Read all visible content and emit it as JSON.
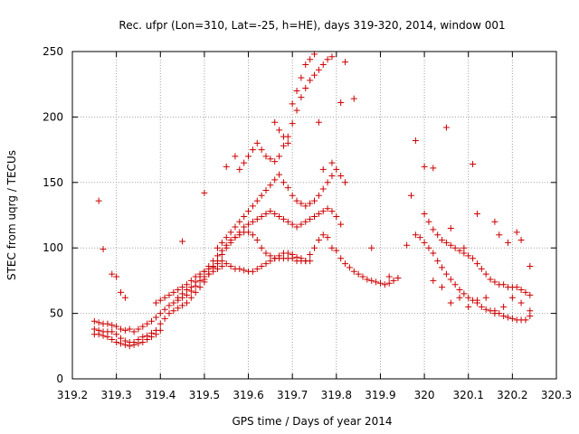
{
  "chart_data": {
    "type": "scatter",
    "title": "Rec. ufpr (Lon=310, Lat=-25, h=HE), days 319-320, 2014, window 001",
    "xlabel": "GPS time / Days of year 2014",
    "ylabel": "STEC from uqrg / TECUs",
    "xlim": [
      319.2,
      320.3
    ],
    "ylim": [
      0,
      250
    ],
    "xticks": [
      "319.2",
      "319.3",
      "319.4",
      "319.5",
      "319.6",
      "319.7",
      "319.8",
      "319.9",
      "320",
      "320.1",
      "320.2",
      "320.3"
    ],
    "yticks": [
      "0",
      "50",
      "100",
      "150",
      "200",
      "250"
    ],
    "grid": true,
    "marker": "+",
    "color": "#cc0000",
    "series": [
      {
        "x": [
          319.25,
          319.26,
          319.27,
          319.28,
          319.29,
          319.3,
          319.31,
          319.32,
          319.33,
          319.34,
          319.35,
          319.36,
          319.37,
          319.38,
          319.39,
          319.4,
          319.25,
          319.26,
          319.27,
          319.28,
          319.29,
          319.3,
          319.31,
          319.32,
          319.33,
          319.34,
          319.35,
          319.36,
          319.37,
          319.38,
          319.39,
          319.4,
          319.41,
          319.42,
          319.43,
          319.44,
          319.45,
          319.46,
          319.47,
          319.48,
          319.49,
          319.5,
          319.25,
          319.26,
          319.27,
          319.28,
          319.29,
          319.3,
          319.31,
          319.32,
          319.33,
          319.34,
          319.35,
          319.36,
          319.37,
          319.38,
          319.39,
          319.4,
          319.41,
          319.42,
          319.43,
          319.44,
          319.45,
          319.46,
          319.47,
          319.48,
          319.49,
          319.5,
          319.51,
          319.52,
          319.53,
          319.54,
          319.39,
          319.4,
          319.41,
          319.42,
          319.43,
          319.44,
          319.45,
          319.46,
          319.47,
          319.48,
          319.49,
          319.5,
          319.51,
          319.52,
          319.53,
          319.54,
          319.55,
          319.56,
          319.57,
          319.58,
          319.59,
          319.6,
          319.61,
          319.62,
          319.63,
          319.64,
          319.65,
          319.66,
          319.67,
          319.68,
          319.69,
          319.7,
          319.71,
          319.72,
          319.73,
          319.74,
          319.44,
          319.45,
          319.46,
          319.47,
          319.48,
          319.49,
          319.5,
          319.51,
          319.52,
          319.53,
          319.54,
          319.55,
          319.56,
          319.57,
          319.58,
          319.59,
          319.6,
          319.61,
          319.62,
          319.63,
          319.64,
          319.65,
          319.66,
          319.67,
          319.68,
          319.69,
          319.7,
          319.71,
          319.72,
          319.73,
          319.74,
          319.75,
          319.76,
          319.77,
          319.78,
          319.79,
          319.8,
          319.81,
          319.82,
          319.83,
          319.84,
          319.85,
          319.86,
          319.87,
          319.88,
          319.89,
          319.9,
          319.91,
          319.92,
          319.93,
          319.94,
          319.5,
          319.51,
          319.52,
          319.53,
          319.54,
          319.55,
          319.56,
          319.57,
          319.58,
          319.59,
          319.6,
          319.61,
          319.62,
          319.63,
          319.64,
          319.65,
          319.66,
          319.67,
          319.68,
          319.69,
          319.7,
          319.71,
          319.72,
          319.73,
          319.74,
          319.75,
          319.76,
          319.77,
          319.78,
          319.79,
          319.8,
          319.81,
          319.53,
          319.54,
          319.55,
          319.56,
          319.57,
          319.58,
          319.59,
          319.6,
          319.61,
          319.62,
          319.63,
          319.64,
          319.65,
          319.66,
          319.67,
          319.68,
          319.69,
          319.7,
          319.71,
          319.72,
          319.73,
          319.74,
          319.75,
          319.76,
          319.77,
          319.78,
          319.79,
          319.8,
          319.81,
          319.82,
          319.58,
          319.59,
          319.6,
          319.61,
          319.62,
          319.63,
          319.64,
          319.65,
          319.66,
          319.67,
          319.68,
          319.69,
          319.7,
          319.71,
          319.72,
          319.73,
          319.74,
          319.75,
          319.76,
          319.77,
          319.78,
          319.79,
          319.66,
          319.67,
          319.68,
          319.69,
          319.7,
          319.71,
          319.72,
          319.73,
          319.74,
          319.75,
          319.26,
          319.27,
          319.29,
          319.3,
          319.31,
          319.32,
          319.45,
          319.5,
          319.55,
          319.57,
          319.76,
          319.77,
          319.79,
          319.81,
          319.82,
          319.84,
          319.88,
          319.92,
          319.96,
          319.97,
          319.98,
          320.0,
          320.02,
          320.05,
          320.06,
          320.09,
          320.11,
          320.12,
          320.16,
          320.17,
          320.19,
          320.21,
          320.22,
          320.24,
          319.98,
          319.99,
          320.0,
          320.01,
          320.02,
          320.03,
          320.04,
          320.05,
          320.06,
          320.07,
          320.08,
          320.09,
          320.1,
          320.11,
          320.12,
          320.13,
          320.14,
          320.15,
          320.16,
          320.17,
          320.18,
          320.19,
          320.2,
          320.21,
          320.22,
          320.23,
          320.24,
          320.0,
          320.01,
          320.02,
          320.03,
          320.04,
          320.05,
          320.06,
          320.07,
          320.08,
          320.09,
          320.1,
          320.11,
          320.12,
          320.13,
          320.14,
          320.15,
          320.16,
          320.17,
          320.18,
          320.19,
          320.2,
          320.21,
          320.22,
          320.23,
          320.24,
          320.02,
          320.04,
          320.06,
          320.08,
          320.1,
          320.12,
          320.14,
          320.16,
          320.18,
          320.2,
          320.22,
          320.24
        ],
        "y": [
          34,
          34,
          33,
          32,
          30,
          28,
          27,
          26,
          25,
          26,
          27,
          28,
          30,
          32,
          34,
          37,
          38,
          37,
          36,
          36,
          36,
          34,
          31,
          29,
          28,
          28,
          30,
          32,
          33,
          35,
          37,
          42,
          46,
          50,
          52,
          54,
          56,
          58,
          62,
          66,
          70,
          74,
          44,
          43,
          42,
          42,
          41,
          40,
          38,
          37,
          38,
          36,
          38,
          40,
          42,
          44,
          47,
          50,
          53,
          56,
          58,
          60,
          62,
          64,
          67,
          71,
          75,
          78,
          80,
          82,
          84,
          86,
          58,
          60,
          62,
          64,
          66,
          68,
          70,
          72,
          75,
          78,
          80,
          82,
          84,
          86,
          88,
          90,
          88,
          86,
          84,
          84,
          83,
          82,
          82,
          84,
          86,
          88,
          90,
          92,
          94,
          96,
          96,
          95,
          93,
          92,
          90,
          90,
          62,
          65,
          68,
          70,
          74,
          78,
          82,
          86,
          90,
          94,
          98,
          102,
          106,
          108,
          110,
          112,
          112,
          110,
          106,
          100,
          96,
          94,
          92,
          92,
          92,
          92,
          92,
          90,
          90,
          90,
          95,
          100,
          106,
          110,
          108,
          100,
          98,
          92,
          88,
          85,
          82,
          80,
          78,
          76,
          75,
          74,
          73,
          72,
          73,
          75,
          77,
          76,
          80,
          85,
          90,
          95,
          100,
          104,
          108,
          112,
          116,
          118,
          120,
          122,
          124,
          126,
          128,
          126,
          124,
          122,
          120,
          118,
          116,
          118,
          120,
          122,
          124,
          126,
          128,
          130,
          128,
          124,
          118,
          100,
          104,
          108,
          112,
          116,
          120,
          124,
          128,
          132,
          136,
          140,
          144,
          148,
          152,
          156,
          150,
          146,
          140,
          136,
          134,
          132,
          134,
          136,
          140,
          145,
          150,
          155,
          160,
          155,
          150,
          160,
          165,
          170,
          175,
          180,
          175,
          170,
          168,
          166,
          170,
          178,
          185,
          195,
          205,
          215,
          222,
          228,
          232,
          236,
          240,
          244,
          246,
          196,
          190,
          185,
          180,
          210,
          220,
          230,
          240,
          244,
          248,
          136,
          99,
          80,
          78,
          66,
          62,
          105,
          142,
          162,
          170,
          196,
          160,
          165,
          211,
          242,
          214,
          100,
          78,
          102,
          140,
          182,
          162,
          161,
          192,
          115,
          100,
          164,
          126,
          120,
          110,
          104,
          112,
          106,
          86,
          110,
          108,
          104,
          100,
          96,
          90,
          85,
          80,
          76,
          72,
          68,
          65,
          62,
          60,
          58,
          55,
          53,
          52,
          50,
          50,
          48,
          47,
          46,
          45,
          45,
          45,
          48,
          126,
          120,
          114,
          110,
          106,
          104,
          102,
          100,
          98,
          96,
          94,
          92,
          88,
          84,
          80,
          76,
          74,
          72,
          72,
          70,
          70,
          70,
          68,
          66,
          64,
          75,
          70,
          58,
          62,
          55,
          60,
          62,
          52,
          55,
          62,
          58,
          52
        ]
      }
    ]
  }
}
